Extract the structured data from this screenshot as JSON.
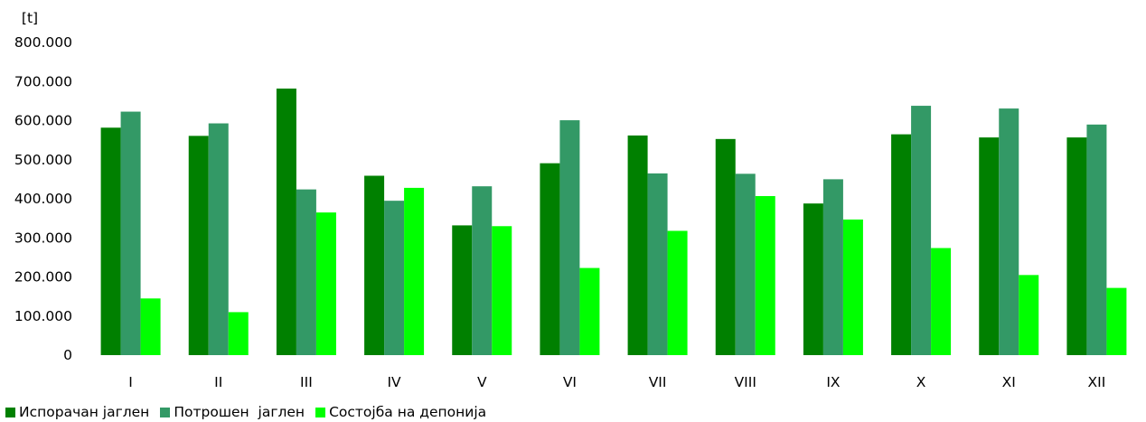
{
  "chart_data": {
    "type": "bar",
    "title": "",
    "xlabel": "",
    "ylabel": "[t]",
    "ylim": [
      0,
      800000
    ],
    "y_ticks": [
      0,
      100000,
      200000,
      300000,
      400000,
      500000,
      600000,
      700000,
      800000
    ],
    "y_tick_labels": [
      "0",
      "100.000",
      "200.000",
      "300.000",
      "400.000",
      "500.000",
      "600.000",
      "700.000",
      "800.000"
    ],
    "grid": false,
    "legend_position": "bottom-left",
    "categories": [
      "I",
      "II",
      "III",
      "IV",
      "V",
      "VI",
      "VII",
      "VIII",
      "IX",
      "X",
      "XI",
      "XII"
    ],
    "series": [
      {
        "name": "Испорачан јаглен",
        "color": "#008000",
        "values": [
          582000,
          561000,
          682000,
          459000,
          332000,
          491000,
          562000,
          553000,
          388000,
          565000,
          557000,
          557000
        ]
      },
      {
        "name": "Потрошен  јаглен",
        "color": "#339966",
        "values": [
          623000,
          593000,
          424000,
          395000,
          432000,
          601000,
          465000,
          464000,
          450000,
          638000,
          631000,
          590000
        ]
      },
      {
        "name": "Состојба на депонија",
        "color": "#00FF00",
        "values": [
          145000,
          110000,
          365000,
          428000,
          330000,
          223000,
          318000,
          407000,
          347000,
          274000,
          205000,
          172000
        ]
      }
    ]
  }
}
